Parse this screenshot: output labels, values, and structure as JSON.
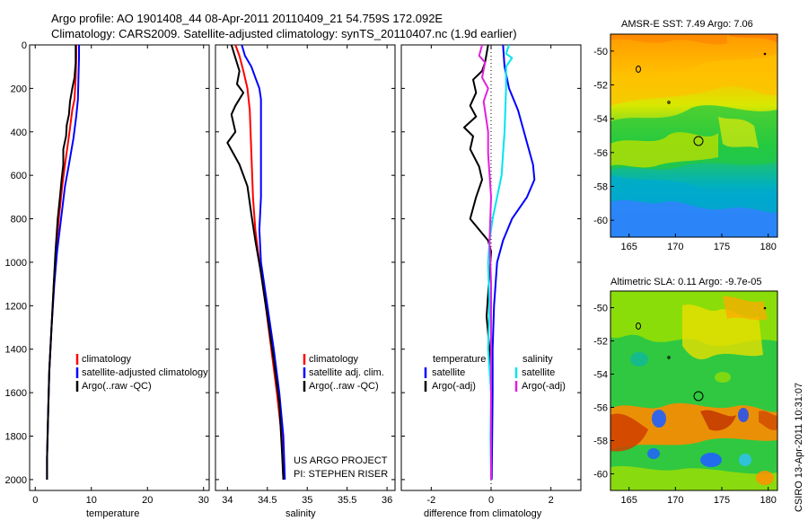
{
  "header": {
    "line1": "Argo profile: AO 1901408_44 08-Apr-2011 20110409_21 54.759S 172.092E",
    "line2": "Climatology: CARS2009. Satellite-adjusted climatology: synTS_20110407.nc (1.9d earlier)"
  },
  "colors": {
    "climatology": "#ff0000",
    "satellite": "#0000ff",
    "argo": "#000000",
    "sat_diff_sal": "#00e5ee",
    "argo_adj_sal": "#e020e0"
  },
  "chart_data": [
    {
      "type": "line",
      "id": "temperature",
      "xlabel": "temperature",
      "xlim": [
        -1,
        31
      ],
      "ylim": [
        0,
        2050
      ],
      "yreversed": true,
      "xticks": [
        0,
        10,
        20,
        30
      ],
      "yticks": [
        0,
        200,
        400,
        600,
        800,
        1000,
        1200,
        1400,
        1600,
        1800,
        2000
      ],
      "legend": {
        "placement": "lower-right",
        "entries": [
          "climatology",
          "satellite-adjusted climatology",
          "Argo(..raw -QC)"
        ]
      },
      "series": [
        {
          "name": "climatology",
          "color": "red",
          "points": [
            [
              7.3,
              0
            ],
            [
              7.3,
              60
            ],
            [
              7.2,
              150
            ],
            [
              7.0,
              250
            ],
            [
              6.6,
              300
            ],
            [
              6.0,
              420
            ],
            [
              5.3,
              550
            ],
            [
              4.8,
              650
            ],
            [
              4.2,
              800
            ],
            [
              3.7,
              950
            ],
            [
              3.3,
              1100
            ],
            [
              2.9,
              1300
            ],
            [
              2.5,
              1500
            ],
            [
              2.3,
              1700
            ],
            [
              2.1,
              1900
            ],
            [
              2.1,
              2000
            ]
          ]
        },
        {
          "name": "satellite-adjusted climatology",
          "color": "blue",
          "points": [
            [
              7.8,
              0
            ],
            [
              7.8,
              60
            ],
            [
              7.7,
              150
            ],
            [
              7.6,
              250
            ],
            [
              7.3,
              330
            ],
            [
              6.8,
              430
            ],
            [
              6.0,
              550
            ],
            [
              5.3,
              650
            ],
            [
              4.6,
              800
            ],
            [
              3.9,
              950
            ],
            [
              3.4,
              1100
            ],
            [
              2.9,
              1300
            ],
            [
              2.5,
              1500
            ],
            [
              2.3,
              1700
            ],
            [
              2.1,
              1900
            ],
            [
              2.1,
              2000
            ]
          ]
        },
        {
          "name": "Argo(..raw -QC)",
          "color": "black",
          "points": [
            [
              7.2,
              0
            ],
            [
              7.2,
              80
            ],
            [
              7.0,
              150
            ],
            [
              6.6,
              200
            ],
            [
              6.2,
              260
            ],
            [
              6.0,
              320
            ],
            [
              5.6,
              370
            ],
            [
              5.5,
              420
            ],
            [
              5.0,
              480
            ],
            [
              5.0,
              550
            ],
            [
              4.7,
              620
            ],
            [
              4.4,
              700
            ],
            [
              4.0,
              800
            ],
            [
              3.6,
              950
            ],
            [
              3.3,
              1100
            ],
            [
              2.9,
              1300
            ],
            [
              2.5,
              1500
            ],
            [
              2.3,
              1700
            ],
            [
              2.1,
              1900
            ],
            [
              2.1,
              2000
            ]
          ]
        }
      ]
    },
    {
      "type": "line",
      "id": "salinity",
      "xlabel": "salinity",
      "xlim": [
        33.85,
        36.1
      ],
      "ylim": [
        0,
        2050
      ],
      "yreversed": true,
      "xticks": [
        34,
        34.5,
        35,
        35.5,
        36
      ],
      "legend": {
        "placement": "lower-right",
        "entries": [
          "climatology",
          "satellite adj. clim.",
          "Argo(..raw -QC)"
        ]
      },
      "series": [
        {
          "name": "climatology",
          "color": "red",
          "points": [
            [
              34.1,
              0
            ],
            [
              34.15,
              50
            ],
            [
              34.2,
              120
            ],
            [
              34.25,
              200
            ],
            [
              34.28,
              300
            ],
            [
              34.3,
              500
            ],
            [
              34.32,
              700
            ],
            [
              34.35,
              850
            ],
            [
              34.4,
              1000
            ],
            [
              34.48,
              1200
            ],
            [
              34.55,
              1400
            ],
            [
              34.62,
              1600
            ],
            [
              34.68,
              1800
            ],
            [
              34.7,
              2000
            ]
          ]
        },
        {
          "name": "satellite adj. clim.",
          "color": "blue",
          "points": [
            [
              34.18,
              0
            ],
            [
              34.22,
              50
            ],
            [
              34.3,
              100
            ],
            [
              34.35,
              150
            ],
            [
              34.4,
              200
            ],
            [
              34.42,
              250
            ],
            [
              34.42,
              700
            ],
            [
              34.4,
              850
            ],
            [
              34.42,
              1000
            ],
            [
              34.5,
              1200
            ],
            [
              34.58,
              1400
            ],
            [
              34.65,
              1600
            ],
            [
              34.7,
              1800
            ],
            [
              34.72,
              2000
            ]
          ]
        },
        {
          "name": "Argo(..raw -QC)",
          "color": "black",
          "points": [
            [
              34.05,
              0
            ],
            [
              34.1,
              60
            ],
            [
              34.15,
              120
            ],
            [
              34.12,
              180
            ],
            [
              34.2,
              220
            ],
            [
              34.1,
              280
            ],
            [
              34.05,
              320
            ],
            [
              34.1,
              400
            ],
            [
              34.0,
              450
            ],
            [
              34.15,
              550
            ],
            [
              34.25,
              650
            ],
            [
              34.3,
              780
            ],
            [
              34.35,
              900
            ],
            [
              34.42,
              1050
            ],
            [
              34.5,
              1250
            ],
            [
              34.58,
              1450
            ],
            [
              34.65,
              1650
            ],
            [
              34.68,
              1850
            ],
            [
              34.7,
              2000
            ]
          ]
        }
      ],
      "annotation": [
        "US ARGO PROJECT",
        "PI: STEPHEN RISER"
      ]
    },
    {
      "type": "line",
      "id": "difference",
      "xlabel": "difference from climatology",
      "xlim": [
        -3,
        3
      ],
      "ylim": [
        0,
        2050
      ],
      "yreversed": true,
      "xticks": [
        -2,
        0,
        2
      ],
      "zero_line": true,
      "legend": {
        "placement": "lower-center",
        "groups": [
          {
            "title": "temperature",
            "entries": [
              "satellite",
              "Argo(-adj)"
            ]
          },
          {
            "title": "salinity",
            "entries": [
              "satellite",
              "Argo(-adj)"
            ]
          }
        ]
      },
      "series": [
        {
          "name": "temperature satellite",
          "color": "blue",
          "points": [
            [
              0.4,
              0
            ],
            [
              0.45,
              100
            ],
            [
              0.6,
              200
            ],
            [
              0.9,
              300
            ],
            [
              1.2,
              450
            ],
            [
              1.4,
              550
            ],
            [
              1.45,
              620
            ],
            [
              1.2,
              700
            ],
            [
              0.7,
              800
            ],
            [
              0.4,
              900
            ],
            [
              0.2,
              1000
            ],
            [
              0.1,
              1200
            ],
            [
              0.05,
              1400
            ],
            [
              0.05,
              1600
            ],
            [
              0.02,
              2000
            ]
          ]
        },
        {
          "name": "temperature Argo(-adj)",
          "color": "black",
          "points": [
            [
              -0.1,
              0
            ],
            [
              -0.2,
              80
            ],
            [
              -0.3,
              120
            ],
            [
              -0.6,
              160
            ],
            [
              -0.5,
              220
            ],
            [
              -0.7,
              280
            ],
            [
              -0.5,
              330
            ],
            [
              -0.9,
              380
            ],
            [
              -0.6,
              420
            ],
            [
              -0.7,
              480
            ],
            [
              -0.4,
              560
            ],
            [
              -0.3,
              620
            ],
            [
              -0.5,
              700
            ],
            [
              -0.7,
              800
            ],
            [
              -0.4,
              850
            ],
            [
              -0.1,
              900
            ],
            [
              0.0,
              950
            ],
            [
              -0.05,
              1050
            ],
            [
              -0.15,
              1250
            ],
            [
              -0.05,
              1400
            ],
            [
              0.0,
              1600
            ],
            [
              0.0,
              2000
            ]
          ]
        },
        {
          "name": "salinity satellite",
          "color": "cyan",
          "points": [
            [
              0.6,
              0
            ],
            [
              0.5,
              40
            ],
            [
              0.7,
              60
            ],
            [
              0.5,
              100
            ],
            [
              0.5,
              200
            ],
            [
              0.45,
              400
            ],
            [
              0.4,
              500
            ],
            [
              0.35,
              600
            ],
            [
              0.2,
              700
            ],
            [
              0.05,
              800
            ],
            [
              -0.05,
              900
            ],
            [
              -0.1,
              1000
            ],
            [
              -0.05,
              1200
            ],
            [
              -0.1,
              1400
            ],
            [
              0.0,
              1600
            ],
            [
              -0.02,
              1800
            ],
            [
              0.0,
              2000
            ]
          ]
        },
        {
          "name": "salinity Argo(-adj)",
          "color": "magenta",
          "points": [
            [
              -0.3,
              0
            ],
            [
              -0.4,
              50
            ],
            [
              -0.2,
              80
            ],
            [
              -0.3,
              150
            ],
            [
              -0.1,
              200
            ],
            [
              -0.25,
              260
            ],
            [
              -0.1,
              400
            ],
            [
              -0.1,
              500
            ],
            [
              0.0,
              700
            ],
            [
              -0.05,
              900
            ],
            [
              0.0,
              1100
            ],
            [
              0.0,
              1400
            ],
            [
              0.0,
              1600
            ],
            [
              0.0,
              2000
            ]
          ]
        }
      ]
    },
    {
      "type": "heatmap",
      "id": "sst_map",
      "title": "AMSR-E SST: 7.49 Argo: 7.06",
      "xlim": [
        163,
        181
      ],
      "ylim": [
        -61,
        -49
      ],
      "xticks": [
        165,
        170,
        175,
        180
      ],
      "yticks": [
        -50,
        -52,
        -54,
        -56,
        -58,
        -60
      ],
      "marker": {
        "lon": 172.1,
        "lat": -54.8
      }
    },
    {
      "type": "heatmap",
      "id": "sla_map",
      "title": "Altimetric SLA: 0.11 Argo: -9.7e-05",
      "xlim": [
        163,
        181
      ],
      "ylim": [
        -61,
        -49
      ],
      "xticks": [
        165,
        170,
        175,
        180
      ],
      "yticks": [
        -50,
        -52,
        -54,
        -56,
        -58,
        -60
      ],
      "marker": {
        "lon": 172.1,
        "lat": -54.8
      }
    }
  ],
  "footer": {
    "stamp": "CSIRO 13-Apr-2011 10:31:07"
  }
}
